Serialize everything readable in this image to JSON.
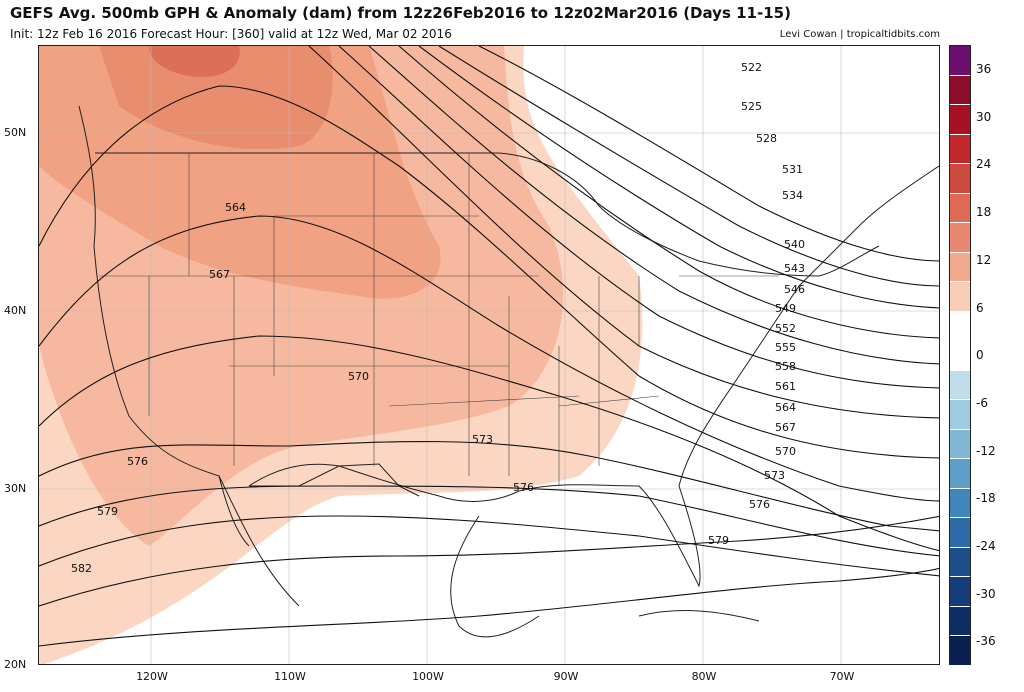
{
  "header": {
    "title": "GEFS Avg. 500mb GPH & Anomaly (dam) from 12z26Feb2016 to 12z02Mar2016 (Days 11-15)",
    "subtitle": "Init: 12z Feb 16 2016   Forecast Hour: [360]   valid at 12z Wed, Mar 02 2016",
    "credit": "Levi Cowan | tropicaltidbits.com"
  },
  "axes": {
    "lat_labels": [
      "50N",
      "40N",
      "30N",
      "20N"
    ],
    "lon_labels": [
      "120W",
      "110W",
      "100W",
      "90W",
      "80W",
      "70W"
    ]
  },
  "contours": {
    "labels": [
      "522",
      "525",
      "528",
      "531",
      "534",
      "540",
      "543",
      "546",
      "549",
      "552",
      "555",
      "558",
      "561",
      "564",
      "567",
      "570",
      "573",
      "576",
      "579",
      "582"
    ],
    "inner_labels": [
      "564",
      "567",
      "570",
      "573",
      "576",
      "579"
    ]
  },
  "colorbar": {
    "tick_labels": [
      "36",
      "30",
      "24",
      "18",
      "12",
      "6",
      "0",
      "-6",
      "-12",
      "-18",
      "-24",
      "-30",
      "-36"
    ],
    "colors": [
      "#6a0f6e",
      "#8a0d2a",
      "#a61225",
      "#c0282e",
      "#cf4a3e",
      "#dc6a55",
      "#e8896f",
      "#f2a98d",
      "#f9cdb8",
      "#ffffff",
      "#ffffff",
      "#c0dce9",
      "#9fcbe0",
      "#80b6d6",
      "#5e9ec9",
      "#4185bd",
      "#2e6aa8",
      "#1d4f8e",
      "#153d78",
      "#0e2d63",
      "#0a1f4e"
    ]
  }
}
